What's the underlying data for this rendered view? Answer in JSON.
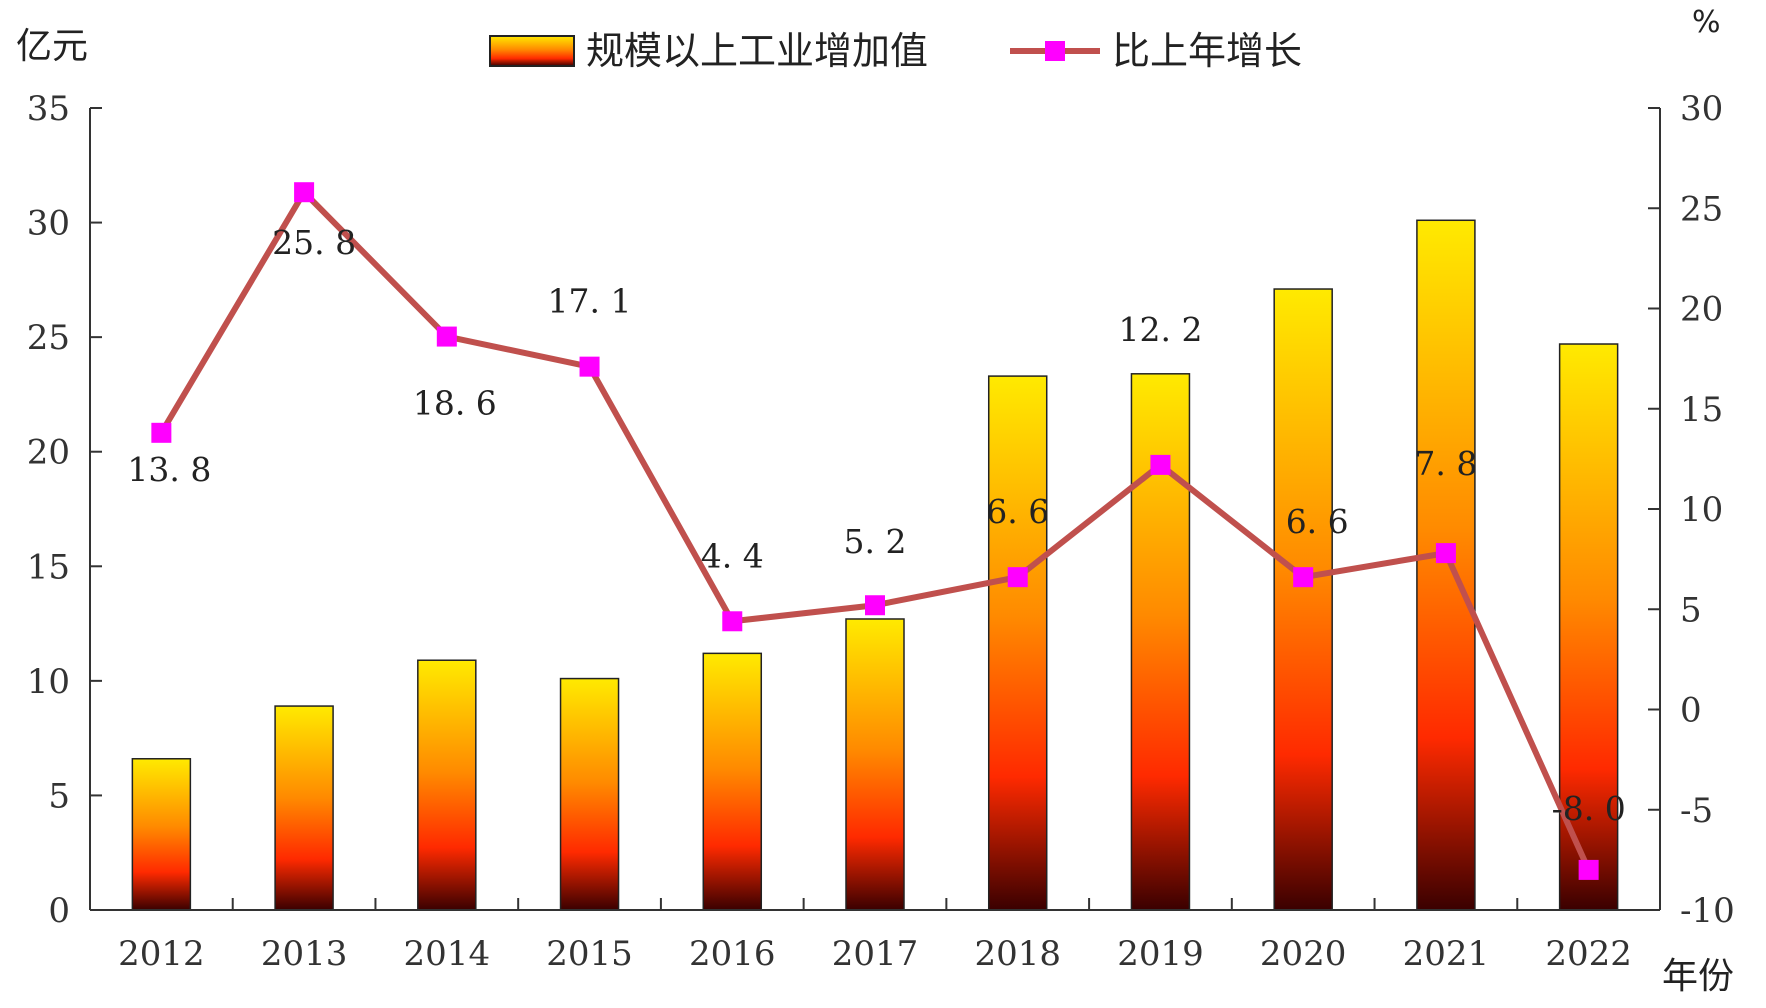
{
  "chart_data": {
    "type": "bar",
    "categories": [
      "2012",
      "2013",
      "2014",
      "2015",
      "2016",
      "2017",
      "2018",
      "2019",
      "2020",
      "2021",
      "2022"
    ],
    "series": [
      {
        "name": "规模以上工业增加值",
        "type": "bar",
        "axis": "left",
        "values": [
          6.6,
          8.9,
          10.9,
          10.1,
          11.2,
          12.7,
          23.3,
          23.4,
          27.1,
          30.1,
          24.7
        ]
      },
      {
        "name": "比上年增长",
        "type": "line",
        "axis": "right",
        "values": [
          13.8,
          25.8,
          18.6,
          17.1,
          4.4,
          5.2,
          6.6,
          12.2,
          6.6,
          7.8,
          -8.0
        ],
        "labels": [
          "13. 8",
          "25. 8",
          "18. 6",
          "17. 1",
          "4. 4",
          "5. 2",
          "6. 6",
          "12. 2",
          "6. 6",
          "7. 8",
          "-8. 0"
        ]
      }
    ],
    "left_unit": "亿元",
    "right_unit": "%",
    "x_unit": "年份",
    "ylim_left": [
      0,
      35
    ],
    "yticks_left": [
      "0",
      "5",
      "10",
      "15",
      "20",
      "25",
      "30",
      "35"
    ],
    "ylim_right": [
      -10,
      30
    ],
    "yticks_right": [
      "-10",
      "-5",
      "0",
      "5",
      "10",
      "15",
      "20",
      "25",
      "30"
    ],
    "grid": false,
    "legend_position": "top",
    "colors": {
      "bar_top": "#ffea00",
      "bar_mid": "#ff2a00",
      "bar_bottom": "#3a0000",
      "line": "#c0504d",
      "marker": "#ff00ff"
    }
  }
}
